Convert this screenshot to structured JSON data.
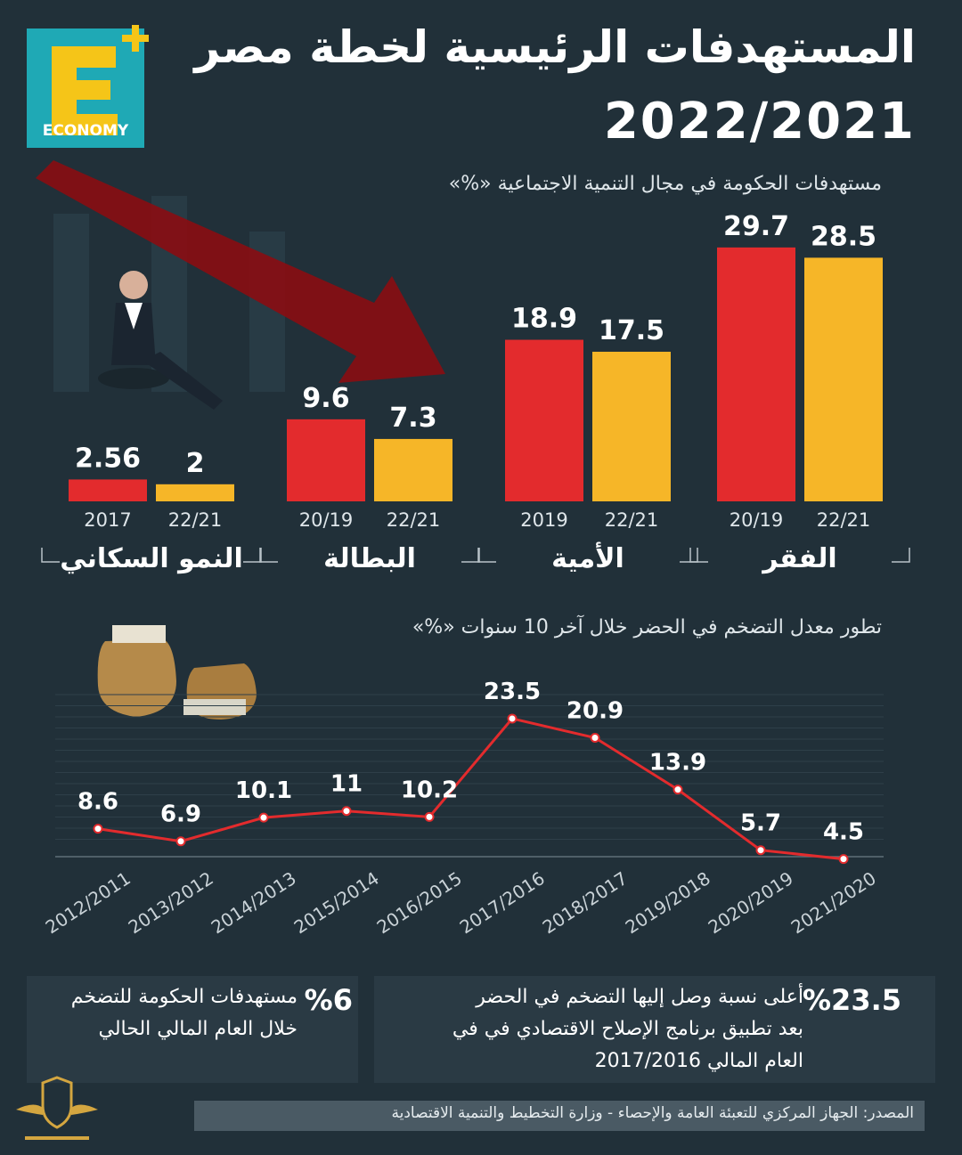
{
  "brand": {
    "logo_letter": "E",
    "logo_word": "ECONOMY",
    "logo_plus": "+"
  },
  "header": {
    "title_line1": "المستهدفات الرئيسية لخطة مصر",
    "title_line2": "2022/2021"
  },
  "colors": {
    "background": "#213039",
    "red": "#e32b2d",
    "yellow": "#f6b628",
    "line": "#e32b2d",
    "logo_yellow": "#f5c518",
    "logo_teal": "#1fa9b5"
  },
  "chart_data": [
    {
      "type": "bar",
      "title": "مستهدفات الحكومة في مجال التنمية الاجتماعية «%»",
      "groups": [
        {
          "name": "الفقر",
          "bars": [
            {
              "label": "20/19",
              "value": 29.7,
              "value_label": "29.7"
            },
            {
              "label": "22/21",
              "value": 28.5,
              "value_label": "28.5"
            }
          ]
        },
        {
          "name": "الأمية",
          "bars": [
            {
              "label": "2019",
              "value": 18.9,
              "value_label": "18.9"
            },
            {
              "label": "22/21",
              "value": 17.5,
              "value_label": "17.5"
            }
          ]
        },
        {
          "name": "البطالة",
          "bars": [
            {
              "label": "20/19",
              "value": 9.6,
              "value_label": "9.6"
            },
            {
              "label": "22/21",
              "value": 7.3,
              "value_label": "7.3"
            }
          ]
        },
        {
          "name": "النمو السكاني",
          "bars": [
            {
              "label": "2017",
              "value": 2.56,
              "value_label": "2.56"
            },
            {
              "label": "22/21",
              "value": 2,
              "value_label": "2"
            }
          ]
        }
      ]
    },
    {
      "type": "line",
      "title": "تطور معدل التضخم في الحضر خلال آخر 10 سنوات «%»",
      "x": [
        "2012/2011",
        "2013/2012",
        "2014/2013",
        "2015/2014",
        "2016/2015",
        "2017/2016",
        "2018/2017",
        "2019/2018",
        "2020/2019",
        "2021/2020"
      ],
      "values": [
        8.6,
        6.9,
        10.1,
        11,
        10.2,
        23.5,
        20.9,
        13.9,
        5.7,
        4.5
      ],
      "value_labels": [
        "8.6",
        "6.9",
        "10.1",
        "11",
        "10.2",
        "23.5",
        "20.9",
        "13.9",
        "5.7",
        "4.5"
      ]
    }
  ],
  "highlights": {
    "left": {
      "big": "%6",
      "text": "مستهدفات الحكومة للتضخم خلال العام المالي الحالي"
    },
    "right": {
      "big": "%23.5",
      "text": "أعلى نسبة وصل إليها التضخم في الحضر بعد تطبيق برنامج الإصلاح الاقتصادي في في العام المالي 2017/2016"
    }
  },
  "source": "المصدر: الجهاز المركزي للتعبئة العامة والإحصاء - وزارة التخطيط والتنمية الاقتصادية"
}
